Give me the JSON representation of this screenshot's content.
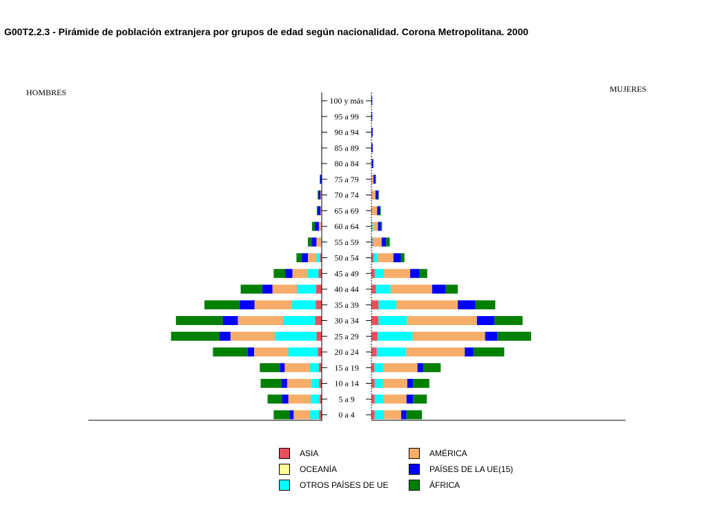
{
  "chart_data": {
    "type": "bar",
    "title": "G00T2.2.3 - Pirámide de población extranjera por grupos de edad según nacionalidad. Corona Metropolitana. 2000",
    "left_label": "HOMBRES",
    "right_label": "MUJERES",
    "categories": [
      "100 y más",
      "95 a 99",
      "90 a 94",
      "85 a 89",
      "80 a 84",
      "75 a 79",
      "70 a 74",
      "65 a 69",
      "60 a 64",
      "55 a 59",
      "50 a 54",
      "45 a 49",
      "40 a 44",
      "35 a 39",
      "30 a 34",
      "25 a 29",
      "20 a 24",
      "15 a 19",
      "10 a 14",
      "5 a 9",
      "0 a 4"
    ],
    "series": [
      {
        "name": "ASIA",
        "color": "#e8515b",
        "hombres": [
          0,
          0,
          0,
          0,
          0,
          0,
          1,
          1,
          1,
          1,
          4,
          8,
          14,
          15,
          16,
          13,
          10,
          7,
          6,
          5,
          6
        ],
        "mujeres": [
          0,
          0,
          0,
          0,
          0,
          1,
          1,
          1,
          2,
          3,
          5,
          8,
          11,
          17,
          17,
          15,
          13,
          7,
          8,
          8,
          8
        ]
      },
      {
        "name": "OCEANÍA",
        "color": "#ffff99",
        "hombres": [
          0,
          0,
          0,
          0,
          0,
          0,
          0,
          0,
          0,
          0,
          0,
          0,
          0,
          0,
          0,
          0,
          0,
          0,
          0,
          0,
          0
        ],
        "mujeres": [
          0,
          0,
          0,
          0,
          0,
          0,
          0,
          0,
          0,
          0,
          0,
          0,
          0,
          0,
          0,
          0,
          0,
          0,
          0,
          0,
          0
        ]
      },
      {
        "name": "OTROS PAÍSES DE UE",
        "color": "#00ffff",
        "hombres": [
          0,
          0,
          0,
          0,
          0,
          0,
          0,
          0,
          0,
          1,
          9,
          27,
          47,
          58,
          79,
          102,
          72,
          22,
          19,
          22,
          23
        ],
        "mujeres": [
          0,
          0,
          0,
          0,
          0,
          0,
          0,
          0,
          2,
          2,
          10,
          23,
          36,
          44,
          70,
          86,
          72,
          23,
          20,
          22,
          23
        ]
      },
      {
        "name": "AMÉRICA",
        "color": "#f7ad6a",
        "hombres": [
          0,
          0,
          0,
          0,
          0,
          1,
          2,
          2,
          6,
          11,
          21,
          37,
          60,
          92,
          111,
          109,
          84,
          62,
          60,
          55,
          40
        ],
        "mujeres": [
          0,
          0,
          0,
          0,
          1,
          4,
          9,
          13,
          12,
          20,
          39,
          64,
          102,
          151,
          172,
          178,
          144,
          83,
          60,
          56,
          42
        ]
      },
      {
        "name": "PAÍSES DE LA UE(15)",
        "color": "#0000ff",
        "hombres": [
          0,
          0,
          0,
          1,
          1,
          3,
          5,
          7,
          10,
          12,
          15,
          17,
          25,
          37,
          37,
          27,
          16,
          12,
          14,
          16,
          10
        ],
        "mujeres": [
          2,
          2,
          3,
          3,
          3,
          5,
          7,
          7,
          7,
          11,
          18,
          23,
          33,
          43,
          43,
          30,
          21,
          14,
          14,
          16,
          13
        ]
      },
      {
        "name": "ÁFRICA",
        "color": "#008000",
        "hombres": [
          0,
          0,
          0,
          0,
          0,
          1,
          2,
          2,
          7,
          9,
          13,
          29,
          53,
          86,
          115,
          119,
          85,
          49,
          51,
          35,
          39
        ],
        "mujeres": [
          0,
          0,
          0,
          0,
          1,
          1,
          1,
          2,
          3,
          9,
          9,
          19,
          30,
          49,
          69,
          83,
          76,
          43,
          40,
          34,
          38
        ]
      }
    ],
    "legend": {
      "col1": [
        "ASIA",
        "OCEANÍA",
        "OTROS PAÍSES DE UE"
      ],
      "col2": [
        "AMÉRICA",
        "PAÍSES DE LA UE(15)",
        "ÁFRICA"
      ]
    },
    "legend_placement": "bottom",
    "grid": false
  }
}
